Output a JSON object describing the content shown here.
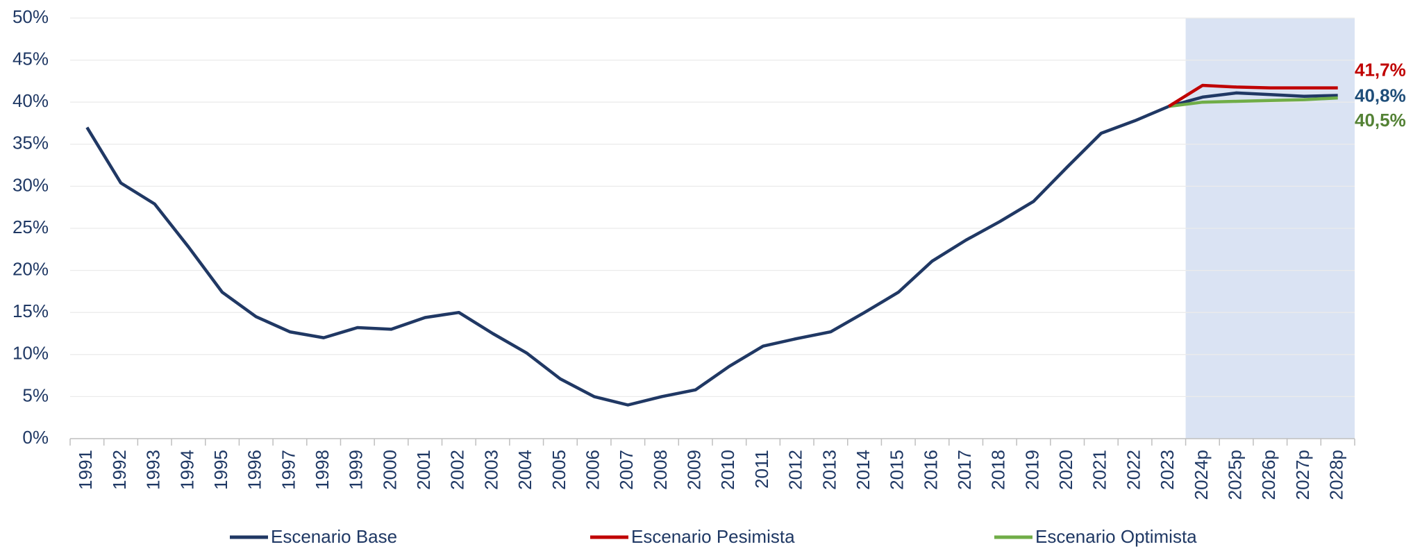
{
  "chart_data": {
    "type": "line",
    "categories": [
      "1991",
      "1992",
      "1993",
      "1994",
      "1995",
      "1996",
      "1997",
      "1998",
      "1999",
      "2000",
      "2001",
      "2002",
      "2003",
      "2004",
      "2005",
      "2006",
      "2007",
      "2008",
      "2009",
      "2010",
      "2011",
      "2012",
      "2013",
      "2014",
      "2015",
      "2016",
      "2017",
      "2018",
      "2019",
      "2020",
      "2021",
      "2022",
      "2023",
      "2024p",
      "2025p",
      "2026p",
      "2027p",
      "2028p"
    ],
    "series": [
      {
        "name": "Escenario Base",
        "color": "#203864",
        "label_color": "#1f4e79",
        "values": [
          37.0,
          30.4,
          27.9,
          22.8,
          17.4,
          14.5,
          12.7,
          12.0,
          13.2,
          13.0,
          14.4,
          15.0,
          12.5,
          10.2,
          7.1,
          5.0,
          4.0,
          5.0,
          5.8,
          8.6,
          11.0,
          11.9,
          12.7,
          15.0,
          17.4,
          21.1,
          23.6,
          25.8,
          28.2,
          32.3,
          36.3,
          37.8,
          39.5,
          40.6,
          41.1,
          40.9,
          40.7,
          40.8
        ],
        "value_labels": [
          null,
          null,
          null,
          null,
          null,
          null,
          null,
          null,
          null,
          null,
          null,
          null,
          null,
          null,
          null,
          null,
          null,
          null,
          null,
          null,
          null,
          null,
          null,
          null,
          null,
          null,
          null,
          null,
          null,
          null,
          null,
          null,
          null,
          null,
          null,
          null,
          null,
          "40,8%"
        ]
      },
      {
        "name": "Escenario Pesimista",
        "color": "#c00000",
        "label_color": "#c00000",
        "values": [
          null,
          null,
          null,
          null,
          null,
          null,
          null,
          null,
          null,
          null,
          null,
          null,
          null,
          null,
          null,
          null,
          null,
          null,
          null,
          null,
          null,
          null,
          null,
          null,
          null,
          null,
          null,
          null,
          null,
          null,
          null,
          null,
          39.5,
          42.0,
          41.8,
          41.7,
          41.7,
          41.7
        ],
        "value_labels": [
          null,
          null,
          null,
          null,
          null,
          null,
          null,
          null,
          null,
          null,
          null,
          null,
          null,
          null,
          null,
          null,
          null,
          null,
          null,
          null,
          null,
          null,
          null,
          null,
          null,
          null,
          null,
          null,
          null,
          null,
          null,
          null,
          null,
          null,
          null,
          null,
          null,
          "41,7%"
        ]
      },
      {
        "name": "Escenario Optimista",
        "color": "#70ad47",
        "label_color": "#548235",
        "values": [
          null,
          null,
          null,
          null,
          null,
          null,
          null,
          null,
          null,
          null,
          null,
          null,
          null,
          null,
          null,
          null,
          null,
          null,
          null,
          null,
          null,
          null,
          null,
          null,
          null,
          null,
          null,
          null,
          null,
          null,
          null,
          null,
          39.5,
          40.0,
          40.1,
          40.2,
          40.3,
          40.5
        ],
        "value_labels": [
          null,
          null,
          null,
          null,
          null,
          null,
          null,
          null,
          null,
          null,
          null,
          null,
          null,
          null,
          null,
          null,
          null,
          null,
          null,
          null,
          null,
          null,
          null,
          null,
          null,
          null,
          null,
          null,
          null,
          null,
          null,
          null,
          null,
          null,
          null,
          null,
          null,
          "40,5%"
        ]
      }
    ],
    "ylim": [
      0,
      50
    ],
    "yticks": [
      {
        "value": 0,
        "label": "0%"
      },
      {
        "value": 5,
        "label": "5%"
      },
      {
        "value": 10,
        "label": "10%"
      },
      {
        "value": 15,
        "label": "15%"
      },
      {
        "value": 20,
        "label": "20%"
      },
      {
        "value": 25,
        "label": "25%"
      },
      {
        "value": 30,
        "label": "30%"
      },
      {
        "value": 35,
        "label": "35%"
      },
      {
        "value": 40,
        "label": "40%"
      },
      {
        "value": 45,
        "label": "45%"
      },
      {
        "value": 50,
        "label": "50%"
      }
    ],
    "grid": true,
    "shaded_range": {
      "from": "2024p",
      "to": "2028p",
      "color": "#dae3f3"
    },
    "legend": "bottom"
  }
}
